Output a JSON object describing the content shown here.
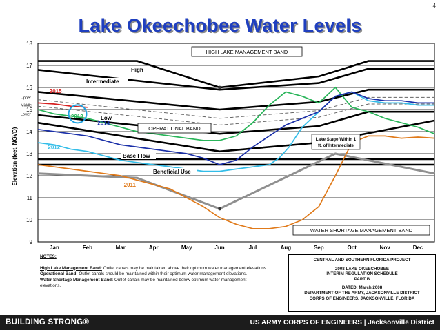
{
  "page_number": "4",
  "title": "Lake Okeechobee Water Levels",
  "chart_data": {
    "type": "line",
    "ylabel": "Elevation (feet, NGVD)",
    "ylim": [
      9,
      18
    ],
    "yticks": [
      "9",
      "10",
      "11",
      "12",
      "13",
      "14",
      "15",
      "16",
      "17",
      "18"
    ],
    "categories": [
      "Jan",
      "Feb",
      "Mar",
      "Apr",
      "May",
      "Jun",
      "Jul",
      "Aug",
      "Sep",
      "Oct",
      "Nov",
      "Dec"
    ],
    "x_range": [
      0,
      12
    ],
    "sub_bands": [
      "Upper",
      "Middle",
      "Lower"
    ],
    "band_labels": {
      "high_lake": "HIGH LAKE MANAGEMENT BAND",
      "high": "High",
      "intermediate": "Intermediate",
      "low": "Low",
      "operational": "OPERATIONAL BAND",
      "base_flow": "Base Flow",
      "beneficial_use": "Beneficial Use",
      "water_shortage": "WATER SHORTAGE MANAGEMENT BAND",
      "lake_stage_note_1": "Lake Stage Within 1",
      "lake_stage_note_2": "ft. of Intermediate"
    },
    "schedule_lines": [
      {
        "name": "top",
        "x": [
          0,
          3,
          5.5,
          8.5,
          10,
          12
        ],
        "y": [
          17.2,
          17.2,
          16.0,
          16.5,
          17.2,
          17.2
        ],
        "style": "heavy"
      },
      {
        "name": "high",
        "x": [
          0,
          5.5,
          8.5,
          10,
          12
        ],
        "y": [
          16.8,
          15.9,
          16.2,
          16.85,
          16.85
        ],
        "style": "heavy"
      },
      {
        "name": "intermediate",
        "x": [
          0,
          5.5,
          8.5,
          10,
          12
        ],
        "y": [
          15.8,
          15.0,
          15.35,
          15.9,
          15.9
        ],
        "style": "heavy"
      },
      {
        "name": "upper",
        "x": [
          0,
          5.5,
          8.5,
          10,
          12
        ],
        "y": [
          15.45,
          14.6,
          14.95,
          15.55,
          15.55
        ],
        "style": "dashed"
      },
      {
        "name": "middle",
        "x": [
          0,
          5.5,
          8.5,
          10,
          12
        ],
        "y": [
          15.15,
          14.3,
          14.65,
          15.25,
          15.25
        ],
        "style": "dashed"
      },
      {
        "name": "low",
        "x": [
          0,
          5.5,
          8.5,
          10,
          12
        ],
        "y": [
          14.75,
          13.9,
          14.25,
          14.9,
          14.9
        ],
        "style": "heavy"
      },
      {
        "name": "base_flow",
        "x": [
          0,
          5.5,
          8.5,
          12
        ],
        "y": [
          14.4,
          13.1,
          13.5,
          14.5
        ],
        "style": "heavy"
      },
      {
        "name": "beneficial_use",
        "x": [
          0,
          12
        ],
        "y": [
          12.5,
          12.5
        ],
        "style": "heavy"
      },
      {
        "name": "shortage_top",
        "x": [
          0,
          12
        ],
        "y": [
          12.75,
          12.75
        ],
        "style": "heavy"
      },
      {
        "name": "water_shortage",
        "x": [
          0,
          3,
          5.5,
          9,
          12
        ],
        "y": [
          12.1,
          11.9,
          10.5,
          13.0,
          12.1
        ],
        "style": "gray"
      }
    ],
    "series": [
      {
        "name": "2011",
        "color": "#e07a1a",
        "x": [
          0,
          0.5,
          1,
          1.5,
          2,
          2.5,
          3,
          3.5,
          4,
          4.5,
          5,
          5.5,
          6,
          6.5,
          7,
          7.5,
          8,
          8.5,
          9,
          9.5,
          10,
          10.5,
          11,
          11.5,
          12
        ],
        "y": [
          12.5,
          12.4,
          12.3,
          12.2,
          12.1,
          12.0,
          11.8,
          11.6,
          11.4,
          11.0,
          10.6,
          10.1,
          9.8,
          9.6,
          9.6,
          9.7,
          10.0,
          10.6,
          12.0,
          13.5,
          13.8,
          13.8,
          13.7,
          13.75,
          13.7
        ]
      },
      {
        "name": "2012",
        "color": "#33bde8",
        "x": [
          0,
          0.5,
          1,
          1.5,
          2,
          2.5,
          3,
          3.5,
          4,
          4.5,
          5,
          5.5,
          6,
          6.5,
          7,
          7.3,
          7.6,
          8,
          8.5,
          9,
          9.5,
          10,
          10.5,
          11,
          11.5,
          12
        ],
        "y": [
          13.5,
          13.4,
          13.2,
          13.1,
          12.9,
          12.7,
          12.6,
          12.5,
          12.4,
          12.3,
          12.2,
          12.2,
          12.3,
          12.4,
          12.5,
          12.8,
          13.3,
          14.2,
          14.9,
          15.6,
          15.8,
          15.4,
          15.3,
          15.3,
          15.2,
          15.2
        ]
      },
      {
        "name": "2013",
        "color": "#2ab55a",
        "x": [
          0,
          0.5,
          1,
          1.5,
          2,
          2.5,
          3,
          3.5,
          4,
          4.5,
          5,
          5.5,
          6,
          6.5,
          7,
          7.5,
          8,
          8.5,
          9,
          9.5,
          10,
          10.5,
          11,
          11.5,
          12
        ],
        "y": [
          15.0,
          14.8,
          14.7,
          14.6,
          14.4,
          14.2,
          14.0,
          13.9,
          13.8,
          13.7,
          13.6,
          13.6,
          13.8,
          14.4,
          15.2,
          15.8,
          15.6,
          15.3,
          16.0,
          15.1,
          14.9,
          14.6,
          14.4,
          14.2,
          13.9
        ]
      },
      {
        "name": "2014",
        "color": "#1a2fa8",
        "x": [
          0,
          0.5,
          1,
          1.5,
          2,
          2.5,
          3,
          3.5,
          4,
          4.5,
          5,
          5.5,
          6,
          6.5,
          7,
          7.5,
          8,
          8.5,
          9,
          9.5,
          10,
          10.5,
          11,
          11.5,
          12
        ],
        "y": [
          14.1,
          14.0,
          13.9,
          13.8,
          13.6,
          13.4,
          13.3,
          13.2,
          13.1,
          13.0,
          12.8,
          12.5,
          12.7,
          13.3,
          13.8,
          14.3,
          14.6,
          14.9,
          15.6,
          15.8,
          15.5,
          15.4,
          15.4,
          15.3,
          15.3
        ]
      },
      {
        "name": "2015",
        "color": "#d62020",
        "x": [
          0,
          0.5,
          1,
          1.5
        ],
        "y": [
          15.3,
          15.25,
          15.15,
          15.1
        ]
      }
    ]
  },
  "notes": {
    "heading": "NOTES:",
    "items": [
      {
        "term": "High Lake Management Band:",
        "text": " Outlet canals may be maintained above their optimum water management elevations."
      },
      {
        "term": "Operational Band:",
        "text": " Outlet canals should be maintained within their optimum water management elevations."
      },
      {
        "term": "Water Shortage Management Band:",
        "text": " Outlet canals may be maintained below optimum water management elevations."
      }
    ]
  },
  "project_box": {
    "line1": "CENTRAL AND SOUTHERN FLORIDA PROJECT",
    "line2": "2008 LAKE OKEECHOBEE",
    "line3": "INTERIM REGULATION SCHEDULE",
    "line4": "PART B",
    "line5": "DATED: March 2008",
    "line6": "DEPARTMENT OF THE ARMY, JACKSONVILLE DISTRICT",
    "line7": "CORPS OF ENGINEERS, JACKSONVILLE, FLORIDA"
  },
  "footer": {
    "left": "BUILDING STRONG®",
    "right": "US ARMY CORPS OF ENGINEERS | Jacksonville District"
  }
}
